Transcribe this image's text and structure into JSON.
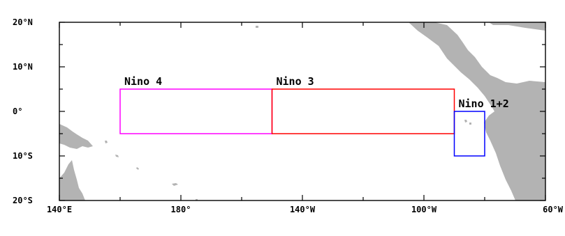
{
  "map": {
    "lon_range": [
      140,
      300
    ],
    "lat_range": [
      -20,
      20
    ],
    "land_color": "#b3b3b3",
    "x_ticks": [
      {
        "value": 140,
        "label": "140°E"
      },
      {
        "value": 180,
        "label": "180°"
      },
      {
        "value": 220,
        "label": "140°W"
      },
      {
        "value": 260,
        "label": "100°W"
      },
      {
        "value": 300,
        "label": "60°W"
      }
    ],
    "y_ticks": [
      {
        "value": 20,
        "label": "20°N"
      },
      {
        "value": 10,
        "label": "10°N"
      },
      {
        "value": 0,
        "label": "0°"
      },
      {
        "value": -10,
        "label": "10°S"
      },
      {
        "value": -20,
        "label": "20°S"
      }
    ],
    "regions": [
      {
        "name": "Nino 4",
        "lon": [
          160,
          210
        ],
        "lat": [
          -5,
          5
        ],
        "color": "#ff00ff"
      },
      {
        "name": "Nino 3",
        "lon": [
          210,
          270
        ],
        "lat": [
          -5,
          5
        ],
        "color": "#ff0000"
      },
      {
        "name": "Nino 1+2",
        "lon": [
          270,
          280
        ],
        "lat": [
          -10,
          0
        ],
        "color": "#0000ff"
      }
    ]
  }
}
